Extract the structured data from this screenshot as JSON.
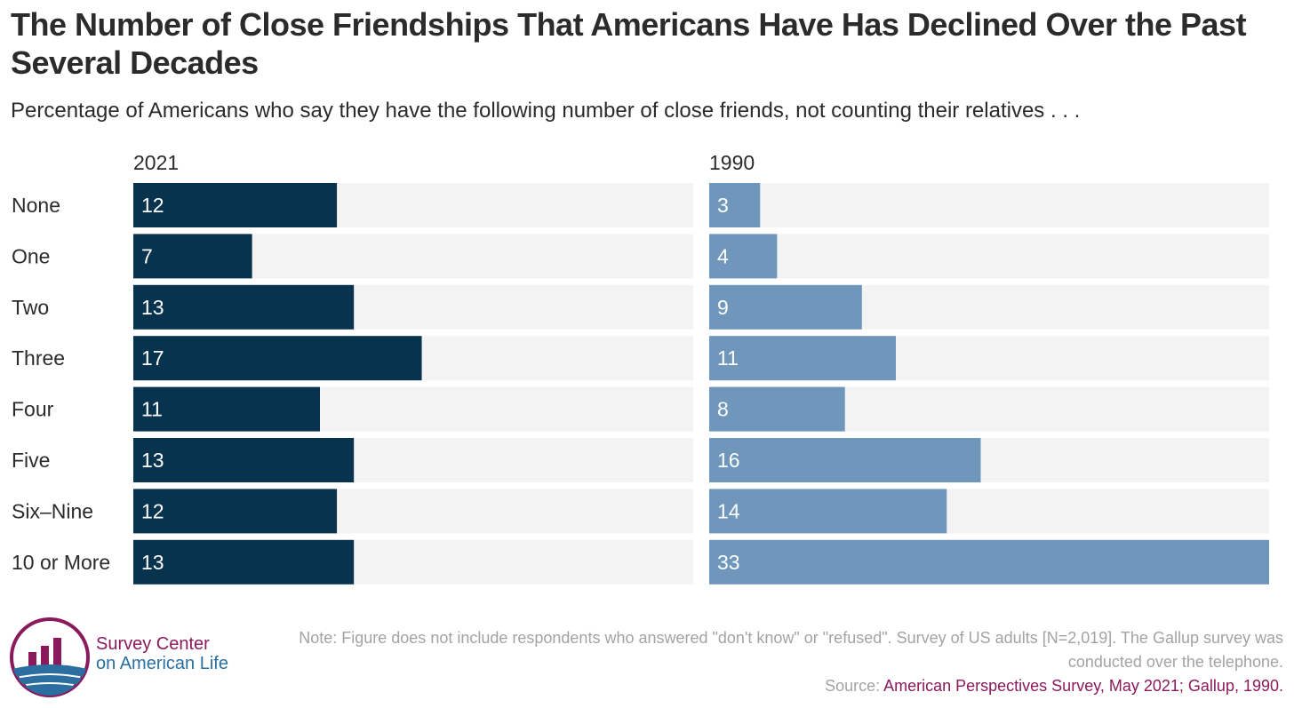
{
  "title": "The Number of Close Friendships That Americans Have Has Declined Over the Past Several Decades",
  "subtitle": "Percentage of Americans who say they have the following number of close friends, not counting their relatives . . .",
  "colors": {
    "series_2021": "#08334f",
    "series_1990": "#6f97bb",
    "track": "#f3f3f3",
    "source_accent": "#8a1a5b",
    "logo_blue": "#2a6fa0"
  },
  "chart_data": {
    "type": "bar",
    "orientation": "horizontal",
    "categories": [
      "None",
      "One",
      "Two",
      "Three",
      "Four",
      "Five",
      "Six–Nine",
      "10 or More"
    ],
    "series": [
      {
        "name": "2021",
        "values": [
          12,
          7,
          13,
          17,
          11,
          13,
          12,
          13
        ]
      },
      {
        "name": "1990",
        "values": [
          3,
          4,
          9,
          11,
          8,
          16,
          14,
          33
        ]
      }
    ],
    "xlim": [
      0,
      33
    ],
    "grid": false,
    "data_labels": true,
    "layout": "small-multiples side by side"
  },
  "footer": {
    "note": "Note: Figure does not include respondents who answered \"don't know\" or \"refused\". Survey of US adults [N=2,019]. The Gallup survey was conducted over the telephone.",
    "source_prefix": "Source: ",
    "source_text": "American Perspectives Survey, May 2021; Gallup, 1990."
  },
  "logo": {
    "line1": "Survey Center",
    "line2": "on American Life",
    "icon": "bar-chart-in-circle-logo"
  }
}
